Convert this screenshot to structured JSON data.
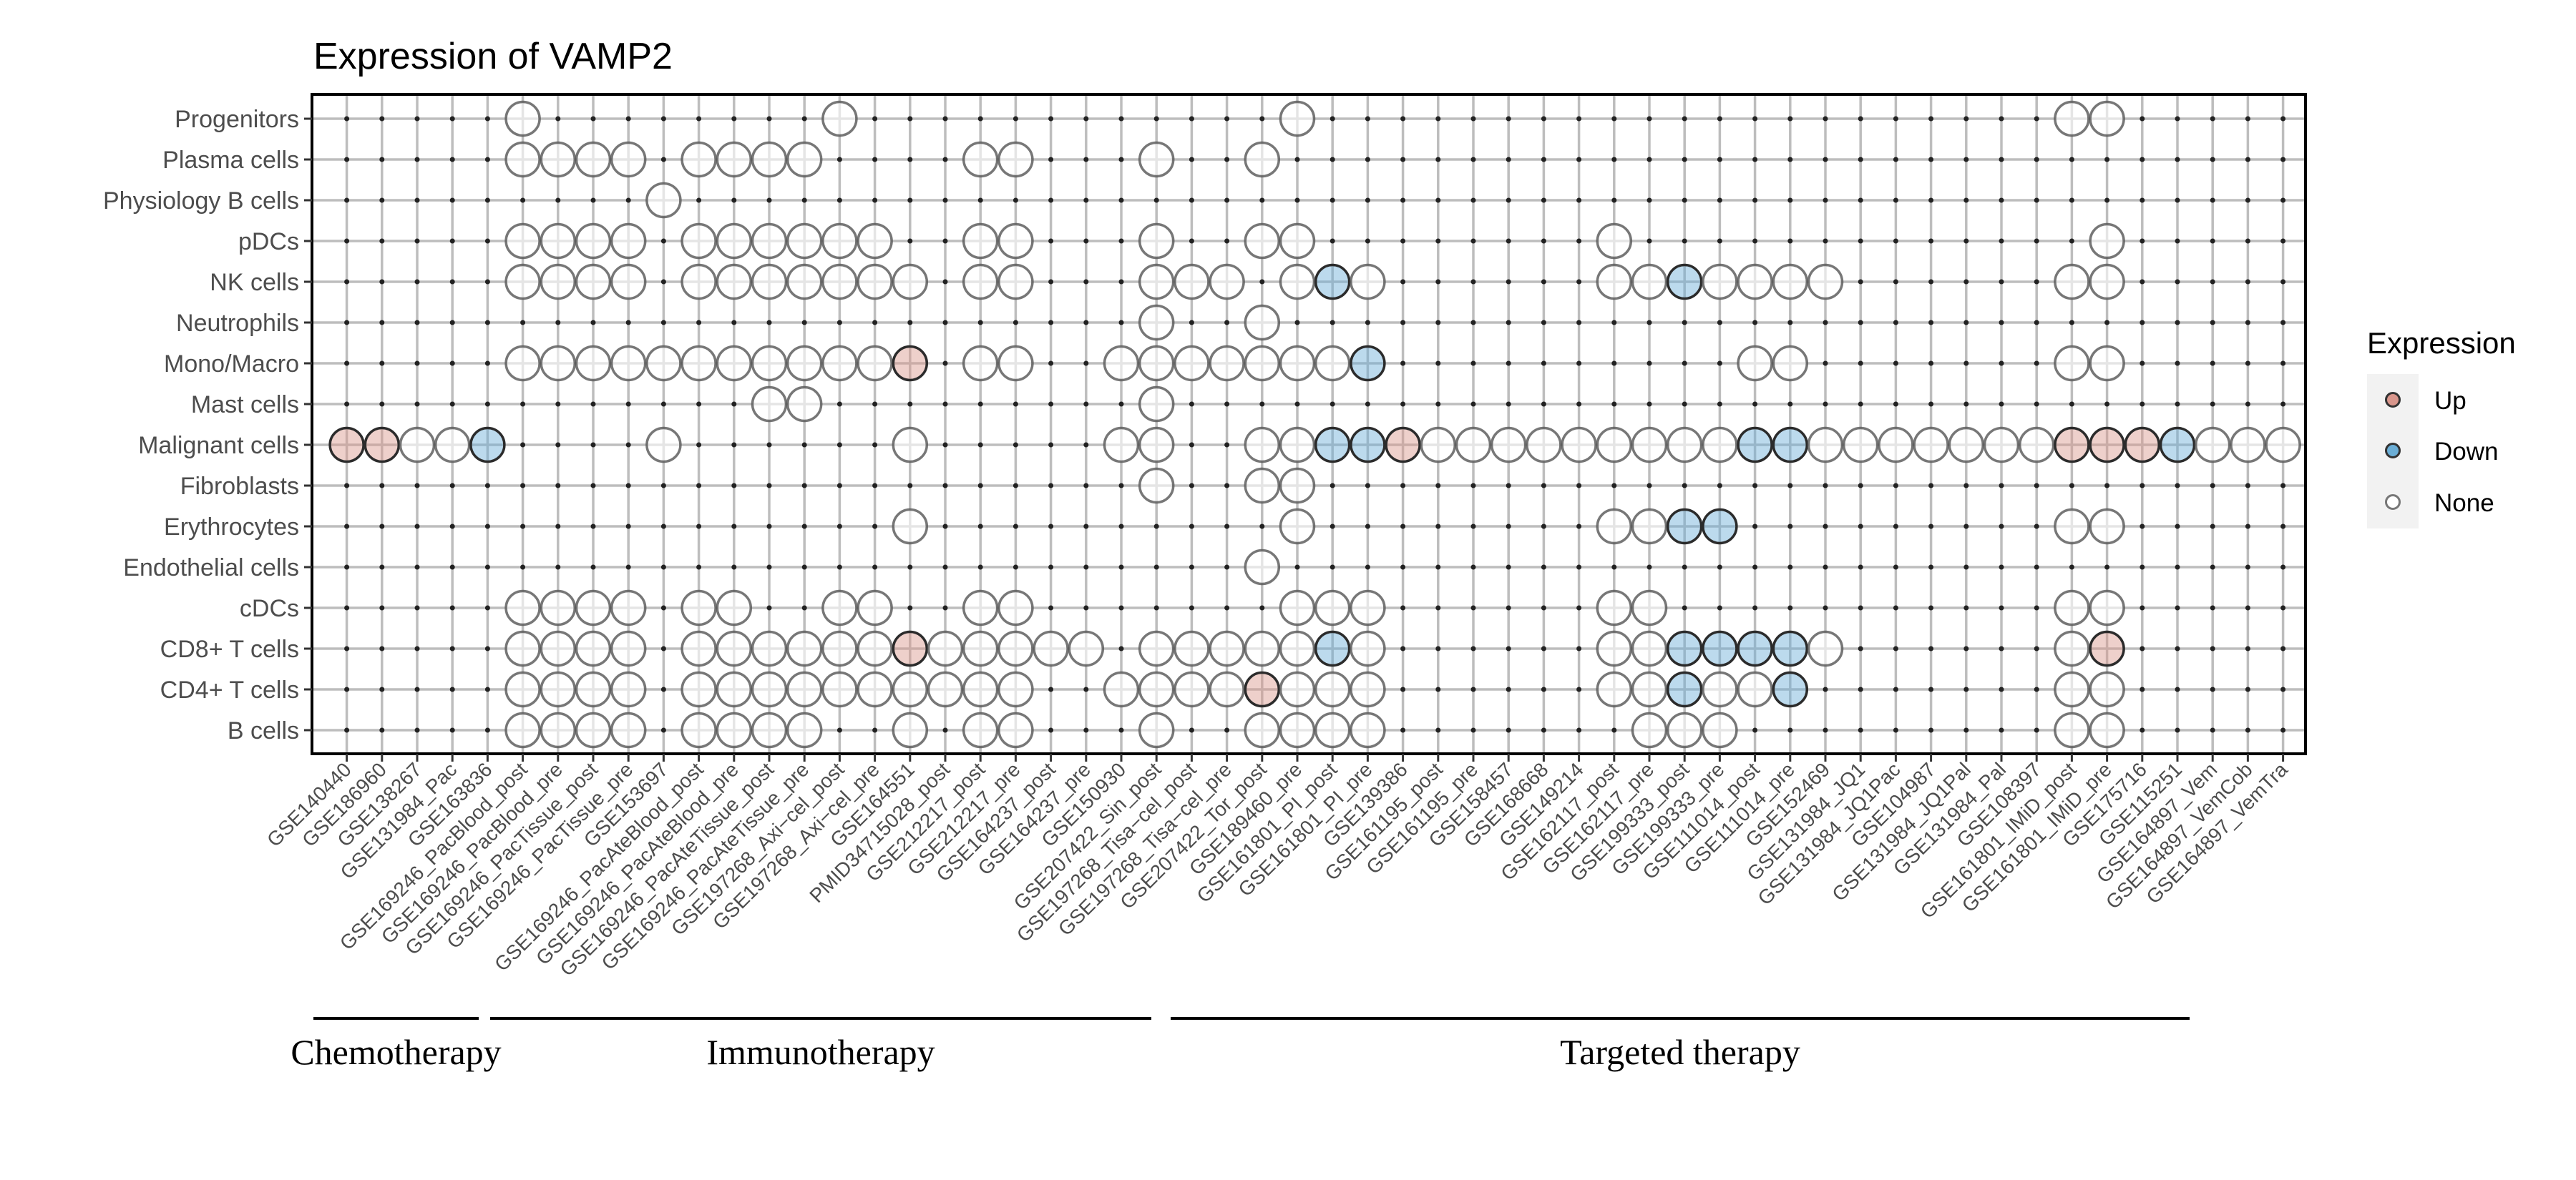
{
  "chart_data": {
    "type": "dot-matrix",
    "title": "Expression of VAMP2",
    "xlabel": "",
    "ylabel": "",
    "grid": true,
    "legend": {
      "title": "Expression",
      "placement": "right",
      "entries": [
        {
          "code": "U",
          "label": "Up",
          "color": "#d9968c"
        },
        {
          "code": "D",
          "label": "Down",
          "color": "#6baed6"
        },
        {
          "code": "o",
          "label": "None",
          "color": "#ffffff"
        }
      ]
    },
    "columns": [
      "GSE140440",
      "GSE186960",
      "GSE138267",
      "GSE131984_Pac",
      "GSE163836",
      "GSE169246_PacBlood_post",
      "GSE169246_PacBlood_pre",
      "GSE169246_PacTissue_post",
      "GSE169246_PacTissue_pre",
      "GSE153697",
      "GSE169246_PacAteBlood_post",
      "GSE169246_PacAteBlood_pre",
      "GSE169246_PacAteTissue_post",
      "GSE169246_PacAteTissue_pre",
      "GSE197268_Axi−cel_post",
      "GSE197268_Axi−cel_pre",
      "GSE164551",
      "PMID34715028_post",
      "GSE212217_post",
      "GSE212217_pre",
      "GSE164237_post",
      "GSE164237_pre",
      "GSE150930",
      "GSE207422_Sin_post",
      "GSE197268_Tisa−cel_post",
      "GSE197268_Tisa−cel_pre",
      "GSE207422_Tor_post",
      "GSE189460_pre",
      "GSE161801_PI_post",
      "GSE161801_PI_pre",
      "GSE139386",
      "GSE161195_post",
      "GSE161195_pre",
      "GSE158457",
      "GSE168668",
      "GSE149214",
      "GSE162117_post",
      "GSE162117_pre",
      "GSE199333_post",
      "GSE199333_pre",
      "GSE111014_post",
      "GSE111014_pre",
      "GSE152469",
      "GSE131984_JQ1",
      "GSE131984_JQ1Pac",
      "GSE104987",
      "GSE131984_JQ1Pal",
      "GSE131984_Pal",
      "GSE108397",
      "GSE161801_IMiD_post",
      "GSE161801_IMiD_pre",
      "GSE175716",
      "GSE115251",
      "GSE164897_Vem",
      "GSE164897_VemCob",
      "GSE164897_VemTra"
    ],
    "rows": [
      {
        "label": "Progenitors",
        "values": ".....o.... ....o..... .......o.. .......... .........o o....."
      },
      {
        "label": "Plasma cells",
        "values": ".....oooo. oooo....oo ...o..o... .......... .......... ......"
      },
      {
        "label": "Physiology B cells",
        "values": ".........o .......... .......... .......... .......... ......"
      },
      {
        "label": "pDCs",
        "values": ".....oooo. oooooo..oo ...o..oo.. ......o... .......... o....."
      },
      {
        "label": "NK cells",
        "values": ".....oooo. ooooooo.oo ...ooo.oDo ......ooDo ooo......o o....."
      },
      {
        "label": "Neutrophils",
        "values": ".......... .......... ...o..o... .......... .......... ......"
      },
      {
        "label": "Mono/Macro",
        "values": ".....ooooo ooooooU.oo ..oooooooD .......... oo.......o o....."
      },
      {
        "label": "Mast cells",
        "values": ".......... ..oo...... ...o...... .......... .......... ......"
      },
      {
        "label": "Malignant cells",
        "values": "UUooD....o ......o... ..oo..ooDD Uooooooooo DDoooooooU UUDooo"
      },
      {
        "label": "Fibroblasts",
        "values": ".......... .......... ...o..oo.. .......... .......... ......"
      },
      {
        "label": "Erythrocytes",
        "values": ".......... ......o... .......o.. ......ooDD .........o o....."
      },
      {
        "label": "Endothelial cells",
        "values": ".......... .......... ......o... .......... .......... ......"
      },
      {
        "label": "cDCs",
        "values": ".....oooo. oo..oo..oo .......ooo ......oo.. .........o o....."
      },
      {
        "label": "CD8+ T cells",
        "values": ".....oooo. ooooooUooo oo.oooooDo ......ooDD DDo......o U....."
      },
      {
        "label": "CD4+ T cells",
        "values": ".....oooo. oooooooooo ..ooooUooo ......ooDo oD.......o o....."
      },
      {
        "label": "B cells",
        "values": ".....oooo. oooo..o.oo ...o..oooo .......ooo .........o o....."
      }
    ],
    "groups": [
      {
        "label": "Chemotherapy"
      },
      {
        "label": "Immunotherapy"
      },
      {
        "label": "Targeted therapy"
      }
    ]
  }
}
